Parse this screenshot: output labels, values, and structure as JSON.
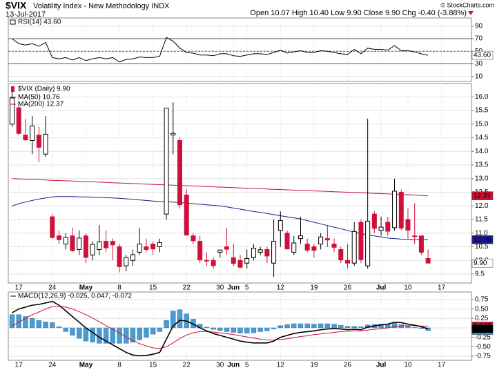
{
  "header": {
    "symbol": "$VIX",
    "name": "Volatility Index - New Methodology INDX",
    "date": "13-Jul-2017",
    "stats": "Open 10.07  High 10.40  Low 9.90  Close 9.90  Chg -0.40 (-3.88%)",
    "credit": "© StockCharts.com"
  },
  "chart_data": [
    {
      "type": "line",
      "ylim": [
        2,
        103
      ],
      "yticks": [
        10,
        30,
        50,
        70,
        90
      ],
      "bands": [
        30,
        70
      ],
      "midline": 50,
      "grid": true,
      "series": [
        {
          "name": "RSI(14) 43.60",
          "color": "#000000",
          "last_label": "43.60",
          "values": [
            70,
            62,
            60,
            62,
            58,
            64,
            40,
            38,
            40,
            36,
            40,
            35,
            38,
            40,
            38,
            40,
            33,
            37,
            38,
            41,
            40,
            40,
            42,
            72,
            66,
            55,
            48,
            47,
            44,
            44,
            43,
            46,
            46,
            43,
            42,
            44,
            46,
            46,
            45,
            48,
            52,
            47,
            49,
            51,
            48,
            48,
            51,
            50,
            48,
            46,
            45,
            53,
            46,
            55,
            53,
            53,
            52,
            59,
            51,
            51,
            49,
            46,
            43.6,
            null,
            null
          ]
        }
      ]
    },
    {
      "type": "candlestick",
      "ylim": [
        9.17,
        16.49
      ],
      "grid": true,
      "yticks": [
        9.5,
        {
          "value": 10,
          "label": "10.0"
        },
        10.5,
        {
          "value": 11,
          "label": "11.0"
        },
        11.5,
        {
          "value": 12,
          "label": "12.0"
        },
        12.5,
        {
          "value": 13,
          "label": "13.0"
        },
        13.5,
        {
          "value": 14,
          "label": "14.0"
        },
        14.5,
        {
          "value": 15,
          "label": "15.0"
        },
        15.5,
        {
          "value": 16,
          "label": "16.0"
        }
      ],
      "categories": [
        null,
        "17",
        null,
        null,
        null,
        null,
        "24",
        null,
        null,
        null,
        null,
        "May",
        null,
        null,
        null,
        null,
        "8",
        null,
        null,
        null,
        null,
        "15",
        null,
        null,
        null,
        null,
        "22",
        null,
        null,
        null,
        null,
        "30",
        null,
        "Jun",
        null,
        "5",
        null,
        null,
        null,
        null,
        "12",
        null,
        null,
        null,
        null,
        "19",
        null,
        null,
        null,
        null,
        "26",
        null,
        null,
        null,
        null,
        "Jul",
        null,
        null,
        null,
        "10",
        null,
        null,
        null,
        null,
        "17"
      ],
      "legend": "$VIX (Daily) 9.90",
      "last_label": "9.90",
      "up_color": "#000000",
      "down_color": "#d0103a",
      "open": [
        15.0,
        15.6,
        14.6,
        14.4,
        14.6,
        13.9,
        11.6,
        10.9,
        10.6,
        10.9,
        10.4,
        10.9,
        10.2,
        10.4,
        10.7,
        10.7,
        10.5,
        9.8,
        10.0,
        10.3,
        10.5,
        10.6,
        10.5,
        11.7,
        14.6,
        14.4,
        12.4,
        10.9,
        10.7,
        10.0,
        10.0,
        10.3,
        10.5,
        10.1,
        10.0,
        9.9,
        10.1,
        10.3,
        10.4,
        9.9,
        11.1,
        11.0,
        10.3,
        10.8,
        10.6,
        10.5,
        10.6,
        10.8,
        10.6,
        10.4,
        10.0,
        9.9,
        11.4,
        9.8,
        11.7,
        11.1,
        11.4,
        11.2,
        12.5,
        11.5,
        10.9,
        10.9,
        10.07,
        null,
        null
      ],
      "high": [
        16.2,
        15.8,
        15.2,
        15.3,
        14.9,
        15.3,
        11.7,
        11.1,
        11.0,
        11.2,
        11.1,
        11.0,
        10.7,
        11.3,
        11.1,
        10.8,
        10.6,
        10.2,
        10.4,
        11.2,
        10.8,
        10.7,
        10.8,
        15.6,
        15.8,
        14.5,
        12.6,
        11.0,
        10.9,
        10.3,
        10.1,
        10.4,
        11.2,
        10.6,
        10.2,
        10.4,
        10.6,
        10.5,
        10.5,
        11.5,
        11.8,
        11.1,
        10.9,
        11.6,
        10.8,
        10.6,
        11.0,
        11.3,
        10.8,
        10.5,
        10.6,
        11.4,
        11.5,
        15.2,
        11.8,
        11.6,
        11.6,
        13.0,
        12.6,
        11.9,
        12.1,
        10.9,
        10.4,
        null,
        null
      ],
      "low": [
        14.9,
        14.6,
        14.4,
        13.9,
        13.6,
        13.8,
        10.8,
        10.6,
        10.4,
        10.3,
        10.2,
        9.9,
        10.0,
        10.2,
        10.3,
        10.0,
        9.56,
        9.6,
        9.8,
        10.2,
        10.3,
        10.2,
        10.3,
        11.5,
        13.9,
        11.9,
        10.9,
        10.6,
        9.9,
        9.8,
        9.7,
        10.1,
        10.2,
        9.8,
        9.7,
        9.7,
        10.0,
        10.2,
        9.9,
        9.4,
        10.5,
        10.4,
        10.2,
        10.6,
        10.3,
        10.1,
        10.4,
        10.5,
        10.3,
        9.9,
        9.7,
        9.8,
        9.9,
        9.7,
        11.0,
        10.9,
        10.9,
        11.1,
        11.1,
        10.8,
        10.6,
        10.2,
        9.9,
        null,
        null
      ],
      "close": [
        15.96,
        14.66,
        14.42,
        14.93,
        14.15,
        14.63,
        10.84,
        10.76,
        10.85,
        10.36,
        10.82,
        10.11,
        10.59,
        10.68,
        10.46,
        10.57,
        9.77,
        10.11,
        10.21,
        10.6,
        10.4,
        10.42,
        10.65,
        15.59,
        14.66,
        12.04,
        10.93,
        10.72,
        10.02,
        9.99,
        9.81,
        10.38,
        10.41,
        9.89,
        9.75,
        10.07,
        10.45,
        10.39,
        10.16,
        10.7,
        11.46,
        10.42,
        10.64,
        10.9,
        10.38,
        10.37,
        10.86,
        10.75,
        10.48,
        10.02,
        9.9,
        11.06,
        10.03,
        11.44,
        11.18,
        11.22,
        11.07,
        12.54,
        11.19,
        11.11,
        10.89,
        10.3,
        9.9,
        null,
        null
      ],
      "series": [
        {
          "name": "MA(50) 10.76",
          "color": "#1a1a8c",
          "last_label": "10.76",
          "values": [
            12.0,
            12.08,
            12.14,
            12.2,
            12.25,
            12.29,
            12.33,
            12.34,
            12.34,
            12.34,
            12.33,
            12.33,
            12.32,
            12.31,
            12.3,
            12.29,
            12.28,
            12.26,
            12.24,
            12.22,
            12.2,
            12.18,
            12.16,
            12.15,
            12.14,
            12.12,
            12.1,
            12.08,
            12.06,
            12.04,
            12.02,
            12.0,
            11.96,
            11.92,
            11.88,
            11.84,
            11.8,
            11.76,
            11.72,
            11.68,
            11.64,
            11.6,
            11.56,
            11.52,
            11.46,
            11.4,
            11.34,
            11.28,
            11.22,
            11.16,
            11.1,
            11.04,
            10.98,
            10.94,
            10.9,
            10.86,
            10.82,
            10.8,
            10.78,
            10.77,
            10.76,
            10.76,
            10.76,
            null,
            null
          ]
        },
        {
          "name": "MA(200) 12.37",
          "color": "#c8102e",
          "last_label": "12.37",
          "values": [
            13.0,
            12.99,
            12.98,
            12.97,
            12.96,
            12.95,
            12.94,
            12.93,
            12.92,
            12.91,
            12.9,
            12.89,
            12.88,
            12.87,
            12.86,
            12.85,
            12.84,
            12.83,
            12.82,
            12.81,
            12.8,
            12.79,
            12.78,
            12.77,
            12.76,
            12.75,
            12.74,
            12.73,
            12.72,
            12.71,
            12.7,
            12.69,
            12.68,
            12.67,
            12.66,
            12.65,
            12.64,
            12.63,
            12.62,
            12.61,
            12.6,
            12.59,
            12.58,
            12.57,
            12.56,
            12.55,
            12.54,
            12.53,
            12.52,
            12.51,
            12.5,
            12.49,
            12.48,
            12.47,
            12.46,
            12.45,
            12.44,
            12.43,
            12.42,
            12.41,
            12.4,
            12.38,
            12.37,
            null,
            null
          ]
        }
      ]
    },
    {
      "type": "combo",
      "ylim": [
        -0.86,
        0.95
      ],
      "grid": true,
      "yticks": [
        0.75,
        {
          "value": 0.5,
          "label": "0.50"
        },
        0.25,
        {
          "value": 0,
          "label": "0.00"
        },
        -0.25,
        {
          "value": -0.5,
          "label": "-0.50"
        },
        -0.75
      ],
      "legend": "MACD(12,26,9) -0.025, 0.047, -0.072",
      "series": [
        {
          "kind": "bar",
          "color": "#4a9bd1",
          "last_label": "-0.072",
          "values": [
            0.35,
            0.35,
            0.3,
            0.25,
            0.2,
            0.16,
            0.14,
            0.03,
            -0.1,
            -0.2,
            -0.28,
            -0.35,
            -0.38,
            -0.41,
            -0.41,
            -0.41,
            -0.41,
            -0.41,
            -0.38,
            -0.32,
            -0.25,
            -0.17,
            -0.1,
            0.2,
            0.45,
            0.48,
            0.37,
            0.23,
            0.1,
            0.02,
            -0.04,
            -0.07,
            -0.1,
            -0.12,
            -0.14,
            -0.14,
            -0.13,
            -0.1,
            -0.08,
            -0.03,
            0.06,
            0.09,
            0.11,
            0.11,
            0.11,
            0.1,
            0.11,
            0.11,
            0.1,
            0.07,
            0.04,
            0.04,
            0.03,
            0.08,
            0.09,
            0.1,
            0.1,
            0.12,
            0.09,
            0.04,
            0.01,
            -0.02,
            -0.072,
            null,
            null
          ]
        },
        {
          "kind": "line",
          "color": "#d0103a",
          "last_label": "0.047",
          "values": [
            0.05,
            0.15,
            0.25,
            0.35,
            0.42,
            0.5,
            0.56,
            0.57,
            0.55,
            0.5,
            0.43,
            0.35,
            0.26,
            0.16,
            0.06,
            -0.04,
            -0.14,
            -0.24,
            -0.34,
            -0.42,
            -0.48,
            -0.53,
            -0.55,
            -0.5,
            -0.4,
            -0.28,
            -0.19,
            -0.13,
            -0.1,
            -0.1,
            -0.11,
            -0.13,
            -0.15,
            -0.18,
            -0.21,
            -0.24,
            -0.27,
            -0.3,
            -0.32,
            -0.32,
            -0.31,
            -0.29,
            -0.26,
            -0.23,
            -0.21,
            -0.18,
            -0.16,
            -0.14,
            -0.12,
            -0.1,
            -0.09,
            -0.08,
            -0.08,
            -0.06,
            -0.04,
            -0.02,
            0.0,
            0.03,
            0.05,
            0.06,
            0.06,
            0.05,
            0.047,
            null,
            null
          ]
        },
        {
          "kind": "line",
          "color": "#000000",
          "last_label": "-0.025",
          "values": [
            0.4,
            0.5,
            0.55,
            0.6,
            0.62,
            0.66,
            0.7,
            0.6,
            0.45,
            0.3,
            0.15,
            0.0,
            -0.12,
            -0.25,
            -0.35,
            -0.45,
            -0.55,
            -0.65,
            -0.72,
            -0.74,
            -0.73,
            -0.7,
            -0.65,
            -0.3,
            0.05,
            0.2,
            0.18,
            0.1,
            0.0,
            -0.08,
            -0.15,
            -0.2,
            -0.25,
            -0.3,
            -0.35,
            -0.38,
            -0.4,
            -0.4,
            -0.4,
            -0.35,
            -0.25,
            -0.2,
            -0.15,
            -0.12,
            -0.1,
            -0.08,
            -0.05,
            -0.03,
            -0.02,
            -0.03,
            -0.05,
            -0.04,
            -0.05,
            0.02,
            0.05,
            0.08,
            0.1,
            0.15,
            0.14,
            0.1,
            0.07,
            0.03,
            -0.025,
            null,
            null
          ]
        }
      ]
    }
  ]
}
